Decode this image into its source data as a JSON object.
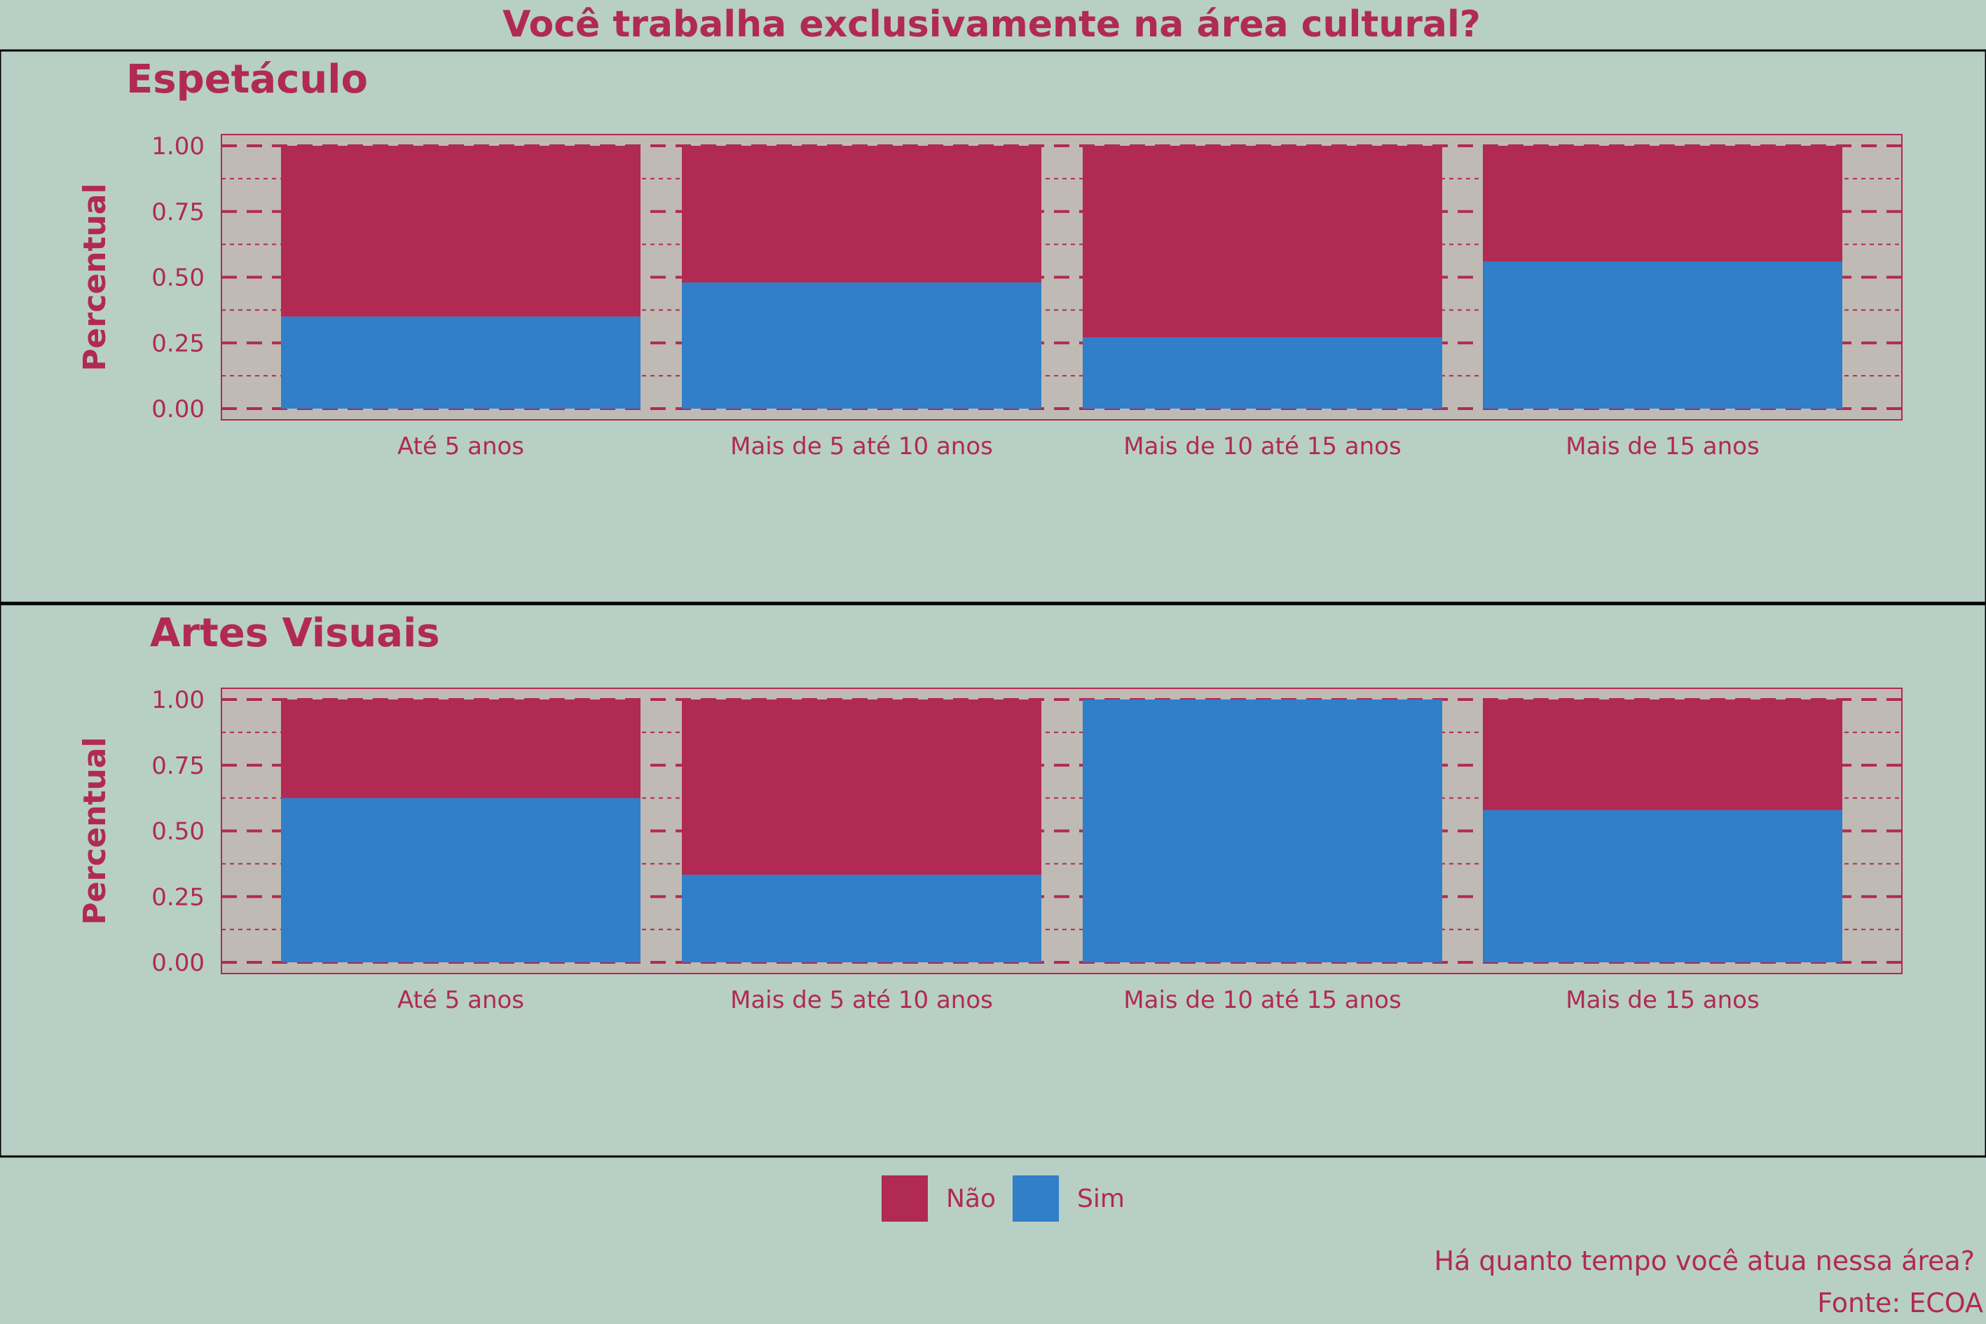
{
  "title": "Você trabalha exclusivamente na área cultural?",
  "legend": {
    "items": [
      {
        "label": "Não",
        "color": "#b02a54"
      },
      {
        "label": "Sim",
        "color": "#317ec9"
      }
    ]
  },
  "caption": {
    "line1": "Há quanto tempo você atua nessa área?",
    "line2": "Fonte: ECOA"
  },
  "colors": {
    "background": "#b8cfc6",
    "panel": "#c0bab4",
    "accent": "#b02a54",
    "nao": "#b02a54",
    "sim": "#317ec9"
  },
  "chart_data": [
    {
      "type": "bar",
      "stacked": true,
      "title": "Espetáculo",
      "ylabel": "Percentual",
      "xlabel": "",
      "ylim": [
        0,
        1
      ],
      "yticks": [
        "0.00",
        "0.25",
        "0.50",
        "0.75",
        "1.00"
      ],
      "categories": [
        "Até 5 anos",
        "Mais de 5 até 10 anos",
        "Mais de 10 até 15 anos",
        "Mais de 15 anos"
      ],
      "series": [
        {
          "name": "Sim",
          "values": [
            0.35,
            0.48,
            0.27,
            0.56
          ]
        },
        {
          "name": "Não",
          "values": [
            0.65,
            0.52,
            0.73,
            0.44
          ]
        }
      ]
    },
    {
      "type": "bar",
      "stacked": true,
      "title": "Artes Visuais",
      "ylabel": "Percentual",
      "xlabel": "",
      "ylim": [
        0,
        1
      ],
      "yticks": [
        "0.00",
        "0.25",
        "0.50",
        "0.75",
        "1.00"
      ],
      "categories": [
        "Até 5 anos",
        "Mais de 5 até 10 anos",
        "Mais de 10 até 15 anos",
        "Mais de 15 anos"
      ],
      "series": [
        {
          "name": "Sim",
          "values": [
            0.625,
            0.333,
            1.0,
            0.579
          ]
        },
        {
          "name": "Não",
          "values": [
            0.375,
            0.667,
            0.0,
            0.421
          ]
        }
      ]
    }
  ]
}
